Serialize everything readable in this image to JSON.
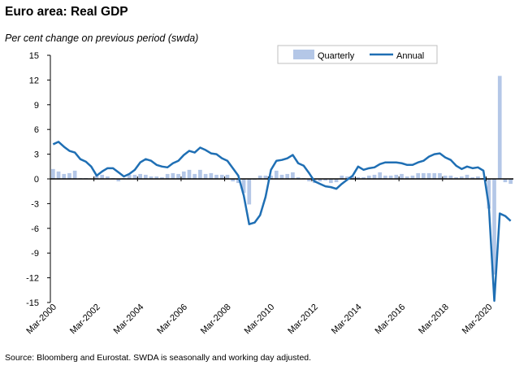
{
  "title": "Euro area: Real GDP",
  "subtitle": "Per cent change on previous period (swda)",
  "source": "Source: Bloomberg and Eurostat. SWDA is seasonally and working day adjusted.",
  "colors": {
    "quarterly": "#b4c7e7",
    "annual": "#1f6fb4",
    "axis": "#000000"
  },
  "chart_data": {
    "type": "bar",
    "ylim": [
      -15,
      15
    ],
    "yticks": [
      15,
      12,
      9,
      6,
      3,
      0,
      -3,
      -6,
      -9,
      -12,
      -15
    ],
    "xtick_labels": [
      "Mar-2000",
      "Mar-2002",
      "Mar-2004",
      "Mar-2006",
      "Mar-2008",
      "Mar-2010",
      "Mar-2012",
      "Mar-2014",
      "Mar-2016",
      "Mar-2018",
      "Mar-2020"
    ],
    "xtick_every": 8,
    "legend": {
      "position": "top-right",
      "entries": [
        "Quarterly",
        "Annual"
      ]
    },
    "grid": false,
    "categories": [
      "Mar-2000",
      "Jun-2000",
      "Sep-2000",
      "Dec-2000",
      "Mar-2001",
      "Jun-2001",
      "Sep-2001",
      "Dec-2001",
      "Mar-2002",
      "Jun-2002",
      "Sep-2002",
      "Dec-2002",
      "Mar-2003",
      "Jun-2003",
      "Sep-2003",
      "Dec-2003",
      "Mar-2004",
      "Jun-2004",
      "Sep-2004",
      "Dec-2004",
      "Mar-2005",
      "Jun-2005",
      "Sep-2005",
      "Dec-2005",
      "Mar-2006",
      "Jun-2006",
      "Sep-2006",
      "Dec-2006",
      "Mar-2007",
      "Jun-2007",
      "Sep-2007",
      "Dec-2007",
      "Mar-2008",
      "Jun-2008",
      "Sep-2008",
      "Dec-2008",
      "Mar-2009",
      "Jun-2009",
      "Sep-2009",
      "Dec-2009",
      "Mar-2010",
      "Jun-2010",
      "Sep-2010",
      "Dec-2010",
      "Mar-2011",
      "Jun-2011",
      "Sep-2011",
      "Dec-2011",
      "Mar-2012",
      "Jun-2012",
      "Sep-2012",
      "Dec-2012",
      "Mar-2013",
      "Jun-2013",
      "Sep-2013",
      "Dec-2013",
      "Mar-2014",
      "Jun-2014",
      "Sep-2014",
      "Dec-2014",
      "Mar-2015",
      "Jun-2015",
      "Sep-2015",
      "Dec-2015",
      "Mar-2016",
      "Jun-2016",
      "Sep-2016",
      "Dec-2016",
      "Mar-2017",
      "Jun-2017",
      "Sep-2017",
      "Dec-2017",
      "Mar-2018",
      "Jun-2018",
      "Sep-2018",
      "Dec-2018",
      "Mar-2019",
      "Jun-2019",
      "Sep-2019",
      "Dec-2019",
      "Mar-2020",
      "Jun-2020",
      "Sep-2020",
      "Dec-2020",
      "Mar-2021"
    ],
    "series": [
      {
        "name": "Quarterly",
        "type": "bar",
        "values": [
          1.2,
          0.9,
          0.6,
          0.7,
          1.0,
          0.1,
          0.1,
          0.0,
          0.4,
          0.5,
          0.3,
          0.1,
          -0.3,
          0.1,
          0.5,
          0.5,
          0.6,
          0.5,
          0.3,
          0.3,
          0.2,
          0.6,
          0.7,
          0.6,
          0.9,
          1.1,
          0.6,
          1.1,
          0.6,
          0.7,
          0.5,
          0.5,
          0.5,
          -0.3,
          -0.5,
          -1.7,
          -3.1,
          -0.1,
          0.4,
          0.4,
          0.4,
          1.0,
          0.5,
          0.6,
          0.8,
          0.2,
          0.1,
          -0.3,
          -0.5,
          -0.3,
          -0.2,
          -0.5,
          -0.4,
          0.4,
          0.3,
          0.3,
          0.2,
          0.2,
          0.4,
          0.5,
          0.8,
          0.4,
          0.4,
          0.5,
          0.6,
          0.3,
          0.4,
          0.7,
          0.7,
          0.7,
          0.7,
          0.7,
          0.4,
          0.4,
          0.2,
          0.3,
          0.5,
          0.2,
          0.3,
          0.1,
          -3.6,
          -11.6,
          12.5,
          -0.4,
          -0.6
        ]
      },
      {
        "name": "Annual",
        "type": "line",
        "values": [
          4.2,
          4.5,
          3.9,
          3.4,
          3.2,
          2.4,
          2.1,
          1.5,
          0.4,
          0.9,
          1.3,
          1.3,
          0.8,
          0.3,
          0.6,
          1.1,
          2.0,
          2.4,
          2.2,
          1.7,
          1.5,
          1.4,
          1.9,
          2.2,
          2.9,
          3.4,
          3.2,
          3.8,
          3.5,
          3.1,
          3.0,
          2.5,
          2.2,
          1.3,
          0.4,
          -2.0,
          -5.5,
          -5.3,
          -4.4,
          -2.2,
          1.1,
          2.2,
          2.3,
          2.5,
          2.9,
          1.9,
          1.6,
          0.7,
          -0.3,
          -0.6,
          -0.9,
          -1.0,
          -1.2,
          -0.6,
          -0.1,
          0.4,
          1.5,
          1.1,
          1.3,
          1.4,
          1.8,
          2.0,
          2.0,
          2.0,
          1.9,
          1.7,
          1.7,
          2.0,
          2.2,
          2.7,
          3.0,
          3.1,
          2.6,
          2.3,
          1.6,
          1.2,
          1.5,
          1.3,
          1.4,
          1.0,
          -3.3,
          -14.8,
          -4.2,
          -4.5,
          -5.1
        ]
      }
    ]
  }
}
